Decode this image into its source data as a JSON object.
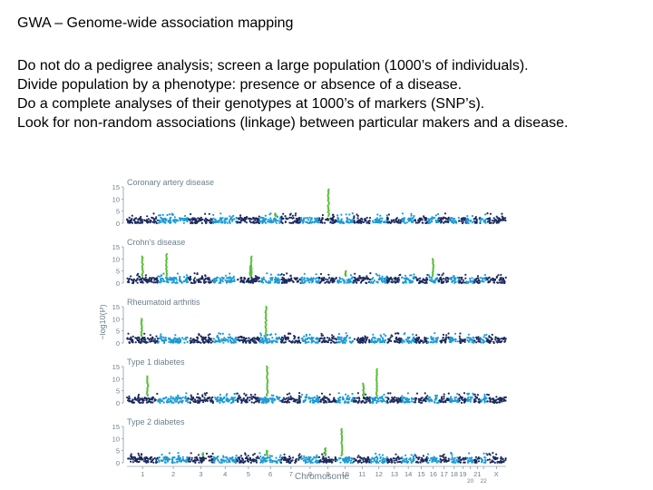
{
  "slide": {
    "title": "GWA – Genome-wide association mapping",
    "lines": [
      "Do not do a pedigree analysis; screen a large population (1000’s of individuals).",
      "Divide population by a phenotype: presence or absence of a disease.",
      "Do a complete analyses of their genotypes at 1000’s of markers (SNP’s).",
      "Look for non-random associations (linkage) between particular makers and a disease."
    ]
  },
  "figure": {
    "y_axis_label": "−log10(P)",
    "x_axis_label": "Chromosome",
    "colors": {
      "dark": "#1b2a5e",
      "light": "#1e9ad6",
      "hit": "#5cbf3a",
      "text": "#6b7f8c"
    },
    "chromosomes": [
      "1",
      "2",
      "3",
      "4",
      "5",
      "6",
      "7",
      "8",
      "9",
      "10",
      "11",
      "12",
      "13",
      "14",
      "15",
      "16",
      "17",
      "18",
      "19",
      "20",
      "21",
      "22",
      "X"
    ],
    "chromosome_tick_labels": [
      "1",
      "2",
      "3",
      "4",
      "5",
      "6",
      "7",
      "8",
      "9",
      "10",
      "11",
      "12",
      "13",
      "14",
      "15",
      "16",
      "17",
      "18",
      "19",
      "20",
      "21",
      "22",
      "X"
    ]
  },
  "chart_data": [
    {
      "type": "scatter",
      "title": "Coronary artery disease",
      "ylim": [
        0,
        15
      ],
      "yticks": [
        0,
        5,
        10,
        15
      ],
      "peaks": [
        {
          "chromosome": "9",
          "neglog10p": 14
        },
        {
          "chromosome": "6",
          "neglog10p": 4
        }
      ]
    },
    {
      "type": "scatter",
      "title": "Crohn's disease",
      "ylim": [
        0,
        15
      ],
      "yticks": [
        0,
        5,
        10,
        15
      ],
      "peaks": [
        {
          "chromosome": "1",
          "neglog10p": 11
        },
        {
          "chromosome": "2",
          "neglog10p": 12
        },
        {
          "chromosome": "5",
          "neglog10p": 11
        },
        {
          "chromosome": "5",
          "neglog10p": 7
        },
        {
          "chromosome": "16",
          "neglog10p": 10
        },
        {
          "chromosome": "10",
          "neglog10p": 5
        }
      ]
    },
    {
      "type": "scatter",
      "title": "Rheumatoid arthritis",
      "ylim": [
        0,
        15
      ],
      "yticks": [
        0,
        5,
        10,
        15
      ],
      "peaks": [
        {
          "chromosome": "6",
          "neglog10p": 15
        },
        {
          "chromosome": "1",
          "neglog10p": 10
        }
      ]
    },
    {
      "type": "scatter",
      "title": "Type 1 diabetes",
      "ylim": [
        0,
        15
      ],
      "yticks": [
        0,
        5,
        10,
        15
      ],
      "peaks": [
        {
          "chromosome": "6",
          "neglog10p": 15
        },
        {
          "chromosome": "1",
          "neglog10p": 11
        },
        {
          "chromosome": "12",
          "neglog10p": 14
        },
        {
          "chromosome": "11",
          "neglog10p": 8
        }
      ]
    },
    {
      "type": "scatter",
      "title": "Type 2 diabetes",
      "ylim": [
        0,
        15
      ],
      "yticks": [
        0,
        5,
        10,
        15
      ],
      "peaks": [
        {
          "chromosome": "10",
          "neglog10p": 14
        },
        {
          "chromosome": "3",
          "neglog10p": 4
        },
        {
          "chromosome": "6",
          "neglog10p": 5
        },
        {
          "chromosome": "9",
          "neglog10p": 6
        }
      ]
    }
  ]
}
